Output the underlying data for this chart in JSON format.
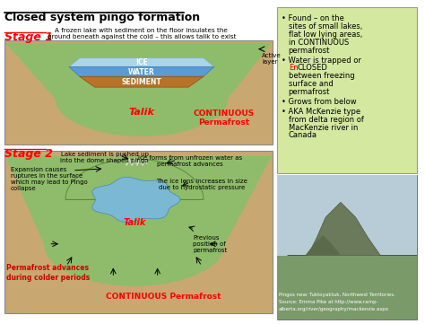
{
  "title": "Closed system pingo formation",
  "bg_color": "#ffffff",
  "right_panel_bg": "#d4e8a0",
  "right_panel_border": "#999999",
  "bullet_points": [
    "Found – on the\nsites of small lakes,\nflat low lying areas,\nin CONTINUOUS\npermafrost",
    "Water is trapped or\nEnCLOSED\nbetween freezing\nsurface and\npermafrost",
    "Grows from below",
    "AKA McKenzie type\nfrom delta region of\nMacKenzie river in\nCanada"
  ],
  "stage1_label": "Stage 1",
  "stage2_label": "Stage 2",
  "stage1_desc": "A frozen lake with sediment on the floor insulates the\nground beneath against the cold – this allows talik to exist",
  "talik_color": "#ff0000",
  "continuous_permafrost_color": "#ff0000",
  "stage_color": "#ff0000",
  "permafrost_color_text": "#cc0000",
  "ground_color": "#c8a870",
  "green_layer": "#8fbc6a",
  "ice_color": "#aad4e8",
  "water_color": "#5b9bd5",
  "sediment_color": "#b8732a",
  "ice_lens_color": "#7ab8d4",
  "photo_bg": "#888888",
  "photo_caption": "Pingos near Tuktoyaktuk, Northwest Territories.\nSource: Emma Pike at http://www.ramp-\nalberta.org/river/geography/mackenzie.aspx"
}
